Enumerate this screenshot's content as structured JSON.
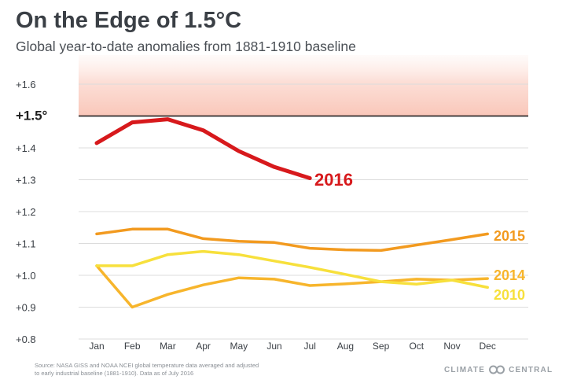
{
  "header": {
    "title": "On the Edge of 1.5°C",
    "subtitle": "Global year-to-date anomalies from 1881-1910 baseline"
  },
  "footer": {
    "source_line1": "Source: NASA GISS and NOAA NCEI global temperature data averaged and adjusted",
    "source_line2": "to early industrial baseline (1881-1910). Data as of July 2016",
    "brand_left": "CLIMATE",
    "brand_right": "CENTRAL"
  },
  "chart_data": {
    "type": "line",
    "title": "On the Edge of 1.5°C",
    "subtitle": "Global year-to-date anomalies from 1881-1910 baseline",
    "xlabel": "",
    "ylabel": "",
    "categories": [
      "Jan",
      "Feb",
      "Mar",
      "Apr",
      "May",
      "Jun",
      "Jul",
      "Aug",
      "Sep",
      "Oct",
      "Nov",
      "Dec"
    ],
    "ylim": [
      0.8,
      1.6
    ],
    "yticks": [
      {
        "value": 1.6,
        "label": "+1.6"
      },
      {
        "value": 1.5,
        "label": "+1.5°"
      },
      {
        "value": 1.4,
        "label": "+1.4"
      },
      {
        "value": 1.3,
        "label": "+1.3"
      },
      {
        "value": 1.2,
        "label": "+1.2"
      },
      {
        "value": 1.1,
        "label": "+1.1"
      },
      {
        "value": 1.0,
        "label": "+1.0"
      },
      {
        "value": 0.9,
        "label": "+0.9"
      },
      {
        "value": 0.8,
        "label": "+0.8"
      }
    ],
    "threshold": {
      "value": 1.5,
      "label": "+1.5°"
    },
    "grid": true,
    "series": [
      {
        "name": "2016",
        "color": "#d7191c",
        "values": [
          1.415,
          1.48,
          1.49,
          1.455,
          1.39,
          1.34,
          1.305,
          null,
          null,
          null,
          null,
          null
        ]
      },
      {
        "name": "2015",
        "color": "#f29a1f",
        "values": [
          1.13,
          1.145,
          1.145,
          1.115,
          1.107,
          1.103,
          1.085,
          1.08,
          1.078,
          1.095,
          1.112,
          1.13
        ]
      },
      {
        "name": "2014",
        "color": "#f7b52c",
        "values": [
          1.03,
          0.9,
          0.94,
          0.97,
          0.992,
          0.988,
          0.968,
          0.973,
          0.98,
          0.988,
          0.985,
          0.99
        ]
      },
      {
        "name": "2010",
        "color": "#f7e03c",
        "values": [
          1.03,
          1.03,
          1.065,
          1.075,
          1.065,
          1.045,
          1.025,
          1.003,
          0.98,
          0.972,
          0.985,
          0.962
        ]
      }
    ]
  }
}
